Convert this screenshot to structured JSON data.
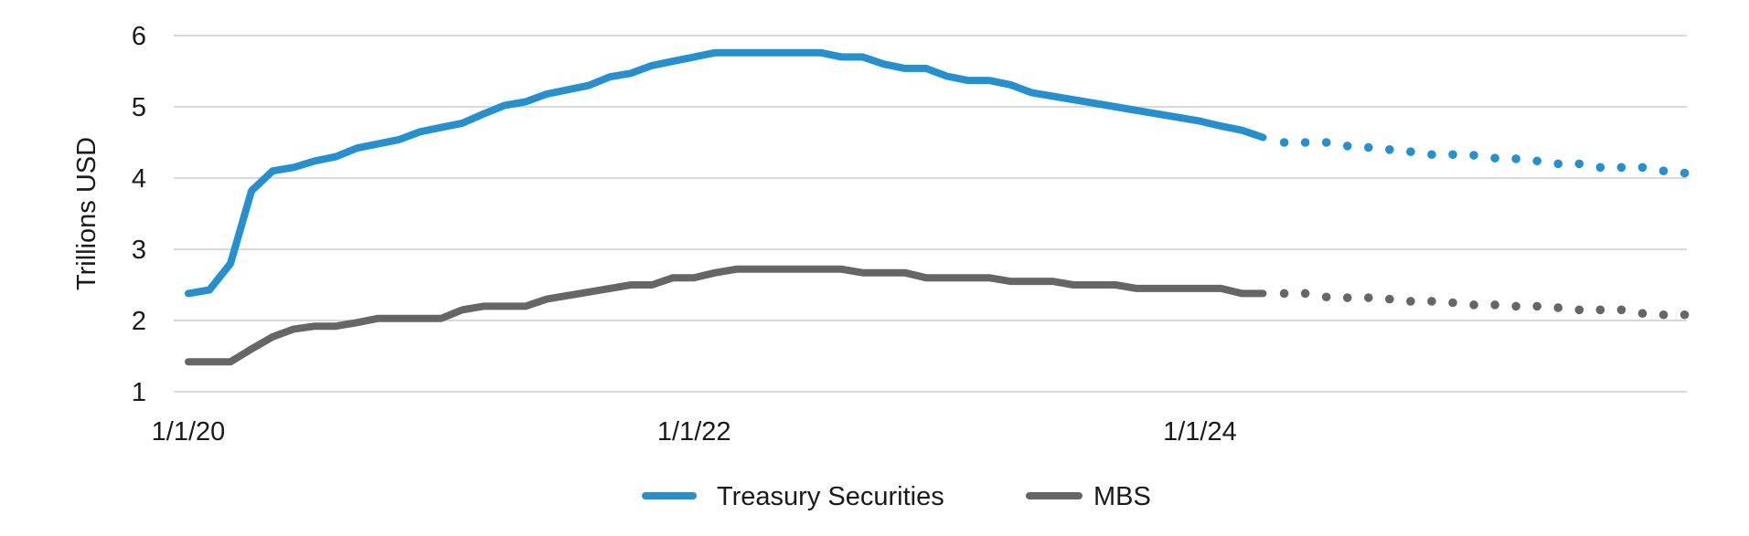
{
  "chart_data": {
    "type": "line",
    "title": "",
    "xlabel": "",
    "ylabel": "Trillions USD",
    "ylim": [
      1,
      6
    ],
    "yticks": [
      "1",
      "2",
      "3",
      "4",
      "5",
      "6"
    ],
    "xticks": [
      {
        "label": "1/1/20",
        "date": "2020-01"
      },
      {
        "label": "1/1/22",
        "date": "2022-01"
      },
      {
        "label": "1/1/24",
        "date": "2024-01"
      }
    ],
    "x_start": "2020-01",
    "x_end": "2025-12",
    "x_frequency": "monthly",
    "projection_start": "2024-05",
    "grid": "horizontal",
    "legend_position": "bottom",
    "series": [
      {
        "name": "Treasury Securities",
        "color": "#2490d0",
        "actual": [
          2.38,
          2.43,
          2.8,
          3.82,
          4.1,
          4.15,
          4.24,
          4.3,
          4.42,
          4.48,
          4.54,
          4.65,
          4.71,
          4.77,
          4.9,
          5.02,
          5.07,
          5.18,
          5.24,
          5.3,
          5.42,
          5.47,
          5.58,
          5.64,
          5.7,
          5.76,
          5.76,
          5.76,
          5.76,
          5.76,
          5.76,
          5.7,
          5.7,
          5.6,
          5.54,
          5.54,
          5.43,
          5.37,
          5.37,
          5.31,
          5.2,
          5.15,
          5.1,
          5.05,
          5.0,
          4.95,
          4.9,
          4.85,
          4.8,
          4.73,
          4.67,
          4.57
        ],
        "projected": [
          4.5,
          4.5,
          4.5,
          4.45,
          4.43,
          4.4,
          4.37,
          4.33,
          4.33,
          4.32,
          4.28,
          4.27,
          4.24,
          4.2,
          4.2,
          4.15,
          4.15,
          4.15,
          4.1,
          4.07
        ]
      },
      {
        "name": "MBS",
        "color": "#666666",
        "actual": [
          1.42,
          1.42,
          1.42,
          1.6,
          1.77,
          1.88,
          1.92,
          1.92,
          1.97,
          2.03,
          2.03,
          2.03,
          2.03,
          2.15,
          2.2,
          2.2,
          2.2,
          2.3,
          2.35,
          2.4,
          2.45,
          2.5,
          2.5,
          2.6,
          2.6,
          2.67,
          2.72,
          2.72,
          2.72,
          2.72,
          2.72,
          2.72,
          2.67,
          2.67,
          2.67,
          2.6,
          2.6,
          2.6,
          2.6,
          2.55,
          2.55,
          2.55,
          2.5,
          2.5,
          2.5,
          2.45,
          2.45,
          2.45,
          2.45,
          2.45,
          2.38,
          2.38
        ],
        "projected": [
          2.38,
          2.38,
          2.33,
          2.32,
          2.32,
          2.3,
          2.27,
          2.27,
          2.25,
          2.22,
          2.22,
          2.2,
          2.2,
          2.18,
          2.15,
          2.15,
          2.15,
          2.1,
          2.08,
          2.08
        ]
      }
    ]
  }
}
